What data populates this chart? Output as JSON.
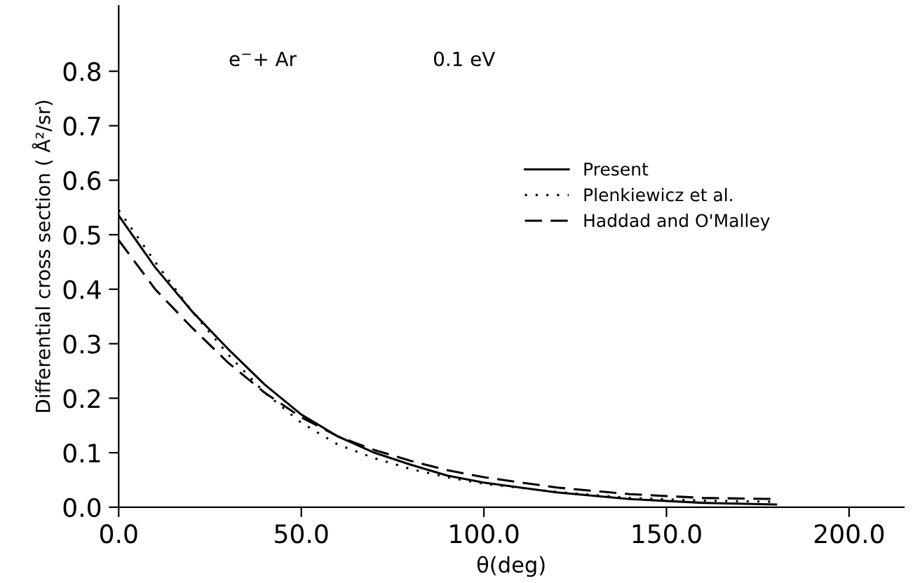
{
  "chart_data": {
    "type": "line",
    "xlabel": "θ(deg)",
    "ylabel": "Differential cross section ( Å²/sr)",
    "annotations": [
      "e$^{−}$+ Ar",
      "0.1 eV"
    ],
    "x": [
      0,
      10,
      20,
      30,
      40,
      50,
      60,
      70,
      80,
      90,
      100,
      120,
      140,
      160,
      180
    ],
    "series": [
      {
        "name": "Present",
        "color": "#000000",
        "line_style": "solid",
        "values": [
          0.535,
          0.44,
          0.36,
          0.29,
          0.225,
          0.17,
          0.13,
          0.1,
          0.078,
          0.058,
          0.045,
          0.027,
          0.015,
          0.008,
          0.005
        ]
      },
      {
        "name": "Plenkiewicz et al.",
        "color": "#000000",
        "line_style": "dotted",
        "values": [
          0.545,
          0.45,
          0.36,
          0.28,
          0.21,
          0.155,
          0.115,
          0.09,
          0.07,
          0.055,
          0.043,
          0.028,
          0.017,
          0.012,
          0.01
        ]
      },
      {
        "name": "Haddad and O'Malley",
        "color": "#000000",
        "line_style": "dashed",
        "values": [
          0.49,
          0.4,
          0.33,
          0.265,
          0.21,
          0.165,
          0.13,
          0.105,
          0.085,
          0.068,
          0.055,
          0.036,
          0.024,
          0.017,
          0.015
        ]
      }
    ],
    "xlim": [
      0,
      215
    ],
    "ylim": [
      0,
      0.92
    ],
    "xticks": [
      {
        "value": 0,
        "label": "0.0"
      },
      {
        "value": 50,
        "label": "50.0"
      },
      {
        "value": 100,
        "label": "100.0"
      },
      {
        "value": 150,
        "label": "150.0"
      },
      {
        "value": 200,
        "label": "200.0"
      }
    ],
    "yticks": [
      {
        "value": 0,
        "label": "0.0"
      },
      {
        "value": 0.1,
        "label": "0.1"
      },
      {
        "value": 0.2,
        "label": "0.2"
      },
      {
        "value": 0.3,
        "label": "0.3"
      },
      {
        "value": 0.4,
        "label": "0.4"
      },
      {
        "value": 0.5,
        "label": "0.5"
      },
      {
        "value": 0.6,
        "label": "0.6"
      },
      {
        "value": 0.7,
        "label": "0.7"
      },
      {
        "value": 0.8,
        "label": "0.8"
      }
    ],
    "grid": false,
    "legend": "center right"
  }
}
